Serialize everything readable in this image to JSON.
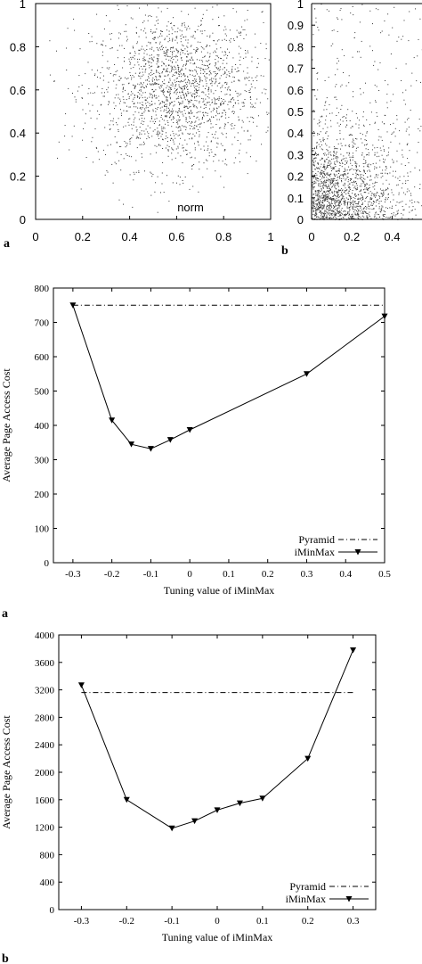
{
  "chart_data": [
    {
      "type": "scatter",
      "panel_label": "a",
      "annotation": "norm",
      "xlim": [
        0,
        1
      ],
      "ylim": [
        0,
        1
      ],
      "xticks": [
        "0",
        "0.2",
        "0.4",
        "0.6",
        "0.8",
        "1"
      ],
      "yticks": [
        "0",
        "0.2",
        "0.4",
        "0.6",
        "0.8",
        "1"
      ],
      "distribution": "normal",
      "center": [
        0.6,
        0.6
      ],
      "spread": 0.18,
      "point_count": 2000
    },
    {
      "type": "scatter",
      "panel_label": "b",
      "xlim": [
        0,
        1
      ],
      "ylim": [
        0,
        1
      ],
      "xticks": [
        "0",
        "0.2",
        "0.4"
      ],
      "yticks": [
        "0",
        "0.1",
        "0.2",
        "0.3",
        "0.4",
        "0.5",
        "0.6",
        "0.7",
        "0.8",
        "0.9",
        "1"
      ],
      "distribution": "skewed toward origin",
      "point_count": 2000
    },
    {
      "type": "line",
      "panel_label": "a",
      "xlabel": "Tuning value of iMinMax",
      "ylabel": "Average Page Access Cost",
      "xlim": [
        -0.35,
        0.5
      ],
      "ylim": [
        0,
        800
      ],
      "xticks": [
        "-0.3",
        "-0.2",
        "-0.1",
        "0",
        "0.1",
        "0.2",
        "0.3",
        "0.4",
        "0.5"
      ],
      "yticks": [
        "0",
        "100",
        "200",
        "300",
        "400",
        "500",
        "600",
        "700",
        "800"
      ],
      "legend_position": "bottom-right",
      "series": [
        {
          "name": "Pyramid",
          "style": "dash-dot",
          "x": [
            -0.3,
            0.5
          ],
          "values": [
            750,
            750
          ]
        },
        {
          "name": "iMinMax",
          "style": "solid-triangle",
          "x": [
            -0.3,
            -0.2,
            -0.15,
            -0.1,
            -0.05,
            0,
            0.3,
            0.5
          ],
          "values": [
            750,
            415,
            345,
            332,
            358,
            387,
            550,
            718
          ]
        }
      ]
    },
    {
      "type": "line",
      "panel_label": "b",
      "xlabel": "Tuning value of iMinMax",
      "ylabel": "Average Page Access Cost",
      "xlim": [
        -0.35,
        0.35
      ],
      "ylim": [
        0,
        4000
      ],
      "xticks": [
        "-0.3",
        "-0.2",
        "-0.1",
        "0",
        "0.1",
        "0.2",
        "0.3"
      ],
      "yticks": [
        "0",
        "400",
        "800",
        "1200",
        "1600",
        "2000",
        "2400",
        "2800",
        "3200",
        "3600",
        "4000"
      ],
      "legend_position": "bottom-right",
      "series": [
        {
          "name": "Pyramid",
          "style": "dash-dot",
          "x": [
            -0.3,
            0.3
          ],
          "values": [
            3160,
            3160
          ]
        },
        {
          "name": "iMinMax",
          "style": "solid-triangle",
          "x": [
            -0.3,
            -0.2,
            -0.1,
            -0.05,
            0,
            0.05,
            0.1,
            0.2,
            0.3
          ],
          "values": [
            3270,
            1600,
            1185,
            1290,
            1450,
            1550,
            1620,
            2200,
            3780
          ]
        }
      ]
    }
  ]
}
